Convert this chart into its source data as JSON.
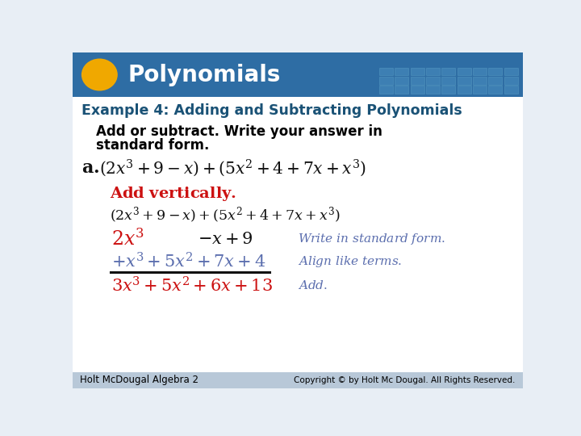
{
  "bg_color": "#e8eef5",
  "header_bg": "#2e6da4",
  "header_text": "Polynomials",
  "header_text_color": "#ffffff",
  "oval_color": "#f0a800",
  "example_title": "Example 4: Adding and Subtracting Polynomials",
  "example_title_color": "#1a5276",
  "instruction_line1": "Add or subtract. Write your answer in",
  "instruction_line2": "standard form.",
  "instruction_color": "#000000",
  "footer_left": "Holt McDougal Algebra 2",
  "footer_right": "Copyright © by Holt Mc Dougal. All Rights Reserved.",
  "footer_color": "#000000",
  "footer_bg": "#b8c8d8",
  "blue_color": "#5b6eae",
  "red_color": "#cc1111",
  "dark_color": "#111111",
  "white": "#ffffff"
}
